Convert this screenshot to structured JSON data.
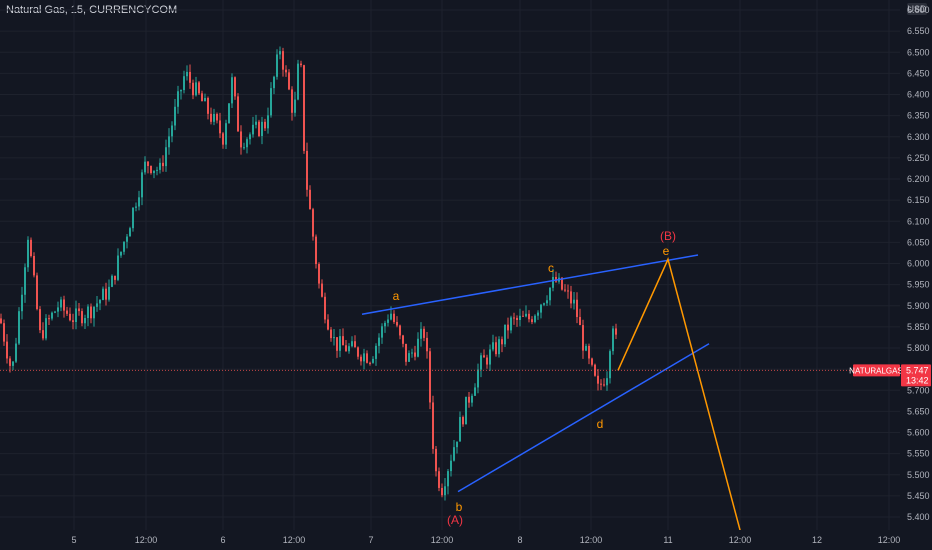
{
  "header": {
    "title": "Natural Gas, 15, CURRENCYCOM"
  },
  "price_axis": {
    "currency": "USD",
    "ticks": [
      "6.600",
      "6.550",
      "6.500",
      "6.450",
      "6.400",
      "6.350",
      "6.300",
      "6.250",
      "6.200",
      "6.150",
      "6.100",
      "6.050",
      "6.000",
      "5.950",
      "5.900",
      "5.850",
      "5.800",
      "5.750",
      "5.700",
      "5.650",
      "5.600",
      "5.550",
      "5.500",
      "5.450",
      "5.400"
    ]
  },
  "time_axis": {
    "ticks": [
      "5",
      "12:00",
      "6",
      "12:00",
      "7",
      "12:00",
      "8",
      "12:00",
      "11",
      "12:00",
      "12",
      "12:00"
    ]
  },
  "last_price": {
    "symbol": "NATURALGAS",
    "price": "5.747",
    "countdown": "13:42"
  },
  "wave_labels": [
    {
      "text": "a",
      "color": "#ff9800"
    },
    {
      "text": "b",
      "color": "#ff9800"
    },
    {
      "text": "(A)",
      "color": "#f23645"
    },
    {
      "text": "c",
      "color": "#ff9800"
    },
    {
      "text": "d",
      "color": "#ff9800"
    },
    {
      "text": "e",
      "color": "#ff9800"
    },
    {
      "text": "(B)",
      "color": "#f23645"
    }
  ],
  "colors": {
    "background": "#131722",
    "up": "#26a69a",
    "down": "#ef5350",
    "trendline": "#2962ff",
    "projection": "#ff9800",
    "badge": "#f23645"
  },
  "chart_data": {
    "type": "candlestick",
    "ylim": [
      5.38,
      6.62
    ],
    "x_labels": [
      "5",
      "12:00",
      "6",
      "12:00",
      "7",
      "12:00",
      "8",
      "12:00",
      "11",
      "12:00",
      "12",
      "12:00"
    ],
    "price_path": [
      {
        "t": "start",
        "p": 5.87
      },
      {
        "t": "",
        "p": 5.74
      },
      {
        "t": "",
        "p": 6.07
      },
      {
        "t": "",
        "p": 5.83
      },
      {
        "t": "",
        "p": 5.9
      },
      {
        "t": "5",
        "p": 5.87
      },
      {
        "t": "",
        "p": 5.89
      },
      {
        "t": "",
        "p": 5.94
      },
      {
        "t": "",
        "p": 6.1
      },
      {
        "t": "12:00",
        "p": 6.24
      },
      {
        "t": "",
        "p": 6.22
      },
      {
        "t": "",
        "p": 6.45
      },
      {
        "t": "6",
        "p": 6.3
      },
      {
        "t": "",
        "p": 6.43
      },
      {
        "t": "",
        "p": 6.29
      },
      {
        "t": "",
        "p": 6.33
      },
      {
        "t": "",
        "p": 6.51
      },
      {
        "t": "12:00",
        "p": 6.35
      },
      {
        "t": "",
        "p": 6.51
      },
      {
        "t": "",
        "p": 6.22
      },
      {
        "t": "",
        "p": 5.93
      },
      {
        "t": "",
        "p": 5.81
      },
      {
        "t": "7",
        "p": 5.78
      },
      {
        "t": "",
        "p": 5.89
      },
      {
        "t": "",
        "p": 5.77
      },
      {
        "t": "",
        "p": 5.84
      },
      {
        "t": "",
        "p": 5.51
      },
      {
        "t": "12:00",
        "p": 5.47
      },
      {
        "t": "",
        "p": 5.62
      },
      {
        "t": "",
        "p": 5.76
      },
      {
        "t": "",
        "p": 5.81
      },
      {
        "t": "",
        "p": 5.86
      },
      {
        "t": "",
        "p": 5.87
      },
      {
        "t": "8",
        "p": 5.96
      },
      {
        "t": "",
        "p": 5.9
      },
      {
        "t": "",
        "p": 5.79
      },
      {
        "t": "",
        "p": 5.7
      },
      {
        "t": "12:00",
        "p": 5.75
      },
      {
        "t": "",
        "p": 5.88
      },
      {
        "t": "end",
        "p": 5.747
      }
    ],
    "annotations": {
      "wave_points": [
        {
          "label": "a",
          "price": 5.89
        },
        {
          "label": "b",
          "price": 5.47
        },
        {
          "label": "c",
          "price": 5.96
        },
        {
          "label": "d",
          "price": 5.67
        },
        {
          "label": "e",
          "price": 6.01
        }
      ],
      "upper_trendline": {
        "from_price": 5.88,
        "to_price": 6.02
      },
      "lower_trendline": {
        "from_price": 5.46,
        "to_price": 5.81
      },
      "projection": [
        5.747,
        6.01,
        5.38
      ]
    }
  }
}
